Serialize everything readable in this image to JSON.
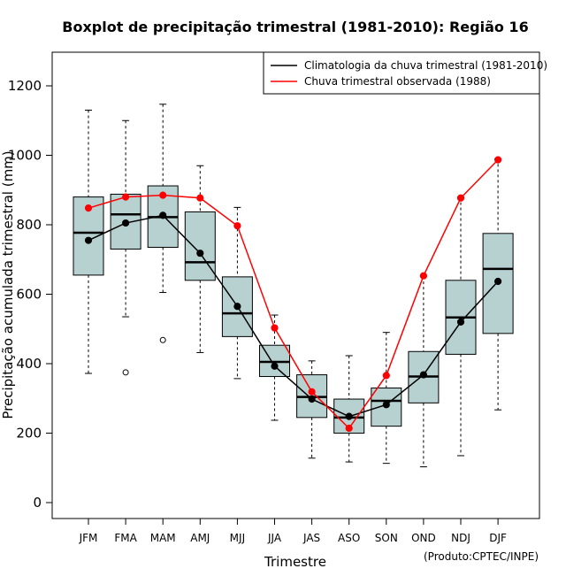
{
  "chart_data": {
    "type": "boxplot",
    "title": "Boxplot de precipitação trimestral (1981-2010): Região 16",
    "xlabel": "Trimestre",
    "ylabel": "Precipitação acumulada trimestral (mm)",
    "ylim": [
      -40,
      1300
    ],
    "yticks": [
      0,
      200,
      400,
      600,
      800,
      1000,
      1200
    ],
    "categories": [
      "JFM",
      "FMA",
      "MAM",
      "AMJ",
      "MJJ",
      "JJA",
      "JAS",
      "ASO",
      "SON",
      "OND",
      "NDJ",
      "DJF"
    ],
    "boxes": [
      {
        "min": 372,
        "q1": 655,
        "median": 777,
        "q3": 880,
        "max": 1130,
        "outliers": []
      },
      {
        "min": 535,
        "q1": 730,
        "median": 830,
        "q3": 888,
        "max": 1100,
        "outliers": [
          375
        ]
      },
      {
        "min": 605,
        "q1": 735,
        "median": 822,
        "q3": 912,
        "max": 1147,
        "outliers": [
          468
        ]
      },
      {
        "min": 432,
        "q1": 640,
        "median": 692,
        "q3": 837,
        "max": 970,
        "outliers": []
      },
      {
        "min": 357,
        "q1": 478,
        "median": 545,
        "q3": 650,
        "max": 850,
        "outliers": []
      },
      {
        "min": 237,
        "q1": 363,
        "median": 405,
        "q3": 453,
        "max": 540,
        "outliers": []
      },
      {
        "min": 128,
        "q1": 245,
        "median": 304,
        "q3": 368,
        "max": 408,
        "outliers": []
      },
      {
        "min": 117,
        "q1": 200,
        "median": 245,
        "q3": 298,
        "max": 423,
        "outliers": []
      },
      {
        "min": 113,
        "q1": 220,
        "median": 293,
        "q3": 330,
        "max": 490,
        "outliers": []
      },
      {
        "min": 103,
        "q1": 287,
        "median": 363,
        "q3": 435,
        "max": 652,
        "outliers": []
      },
      {
        "min": 135,
        "q1": 427,
        "median": 533,
        "q3": 640,
        "max": 880,
        "outliers": []
      },
      {
        "min": 267,
        "q1": 487,
        "median": 673,
        "q3": 775,
        "max": 990,
        "outliers": []
      }
    ],
    "series": [
      {
        "name": "Climatologia da chuva trimestral (1981-2010)",
        "color": "#000000",
        "values": [
          755,
          805,
          827,
          718,
          565,
          393,
          298,
          248,
          282,
          368,
          520,
          637
        ]
      },
      {
        "name": "Chuva trimestral observada (1988)",
        "color": "#ff0000",
        "values": [
          848,
          880,
          885,
          877,
          797,
          503,
          319,
          214,
          366,
          653,
          877,
          987
        ]
      }
    ],
    "box_fill": "#b7d0d0",
    "legend_position": "top-right",
    "credit": "(Produto:CPTEC/INPE)"
  }
}
